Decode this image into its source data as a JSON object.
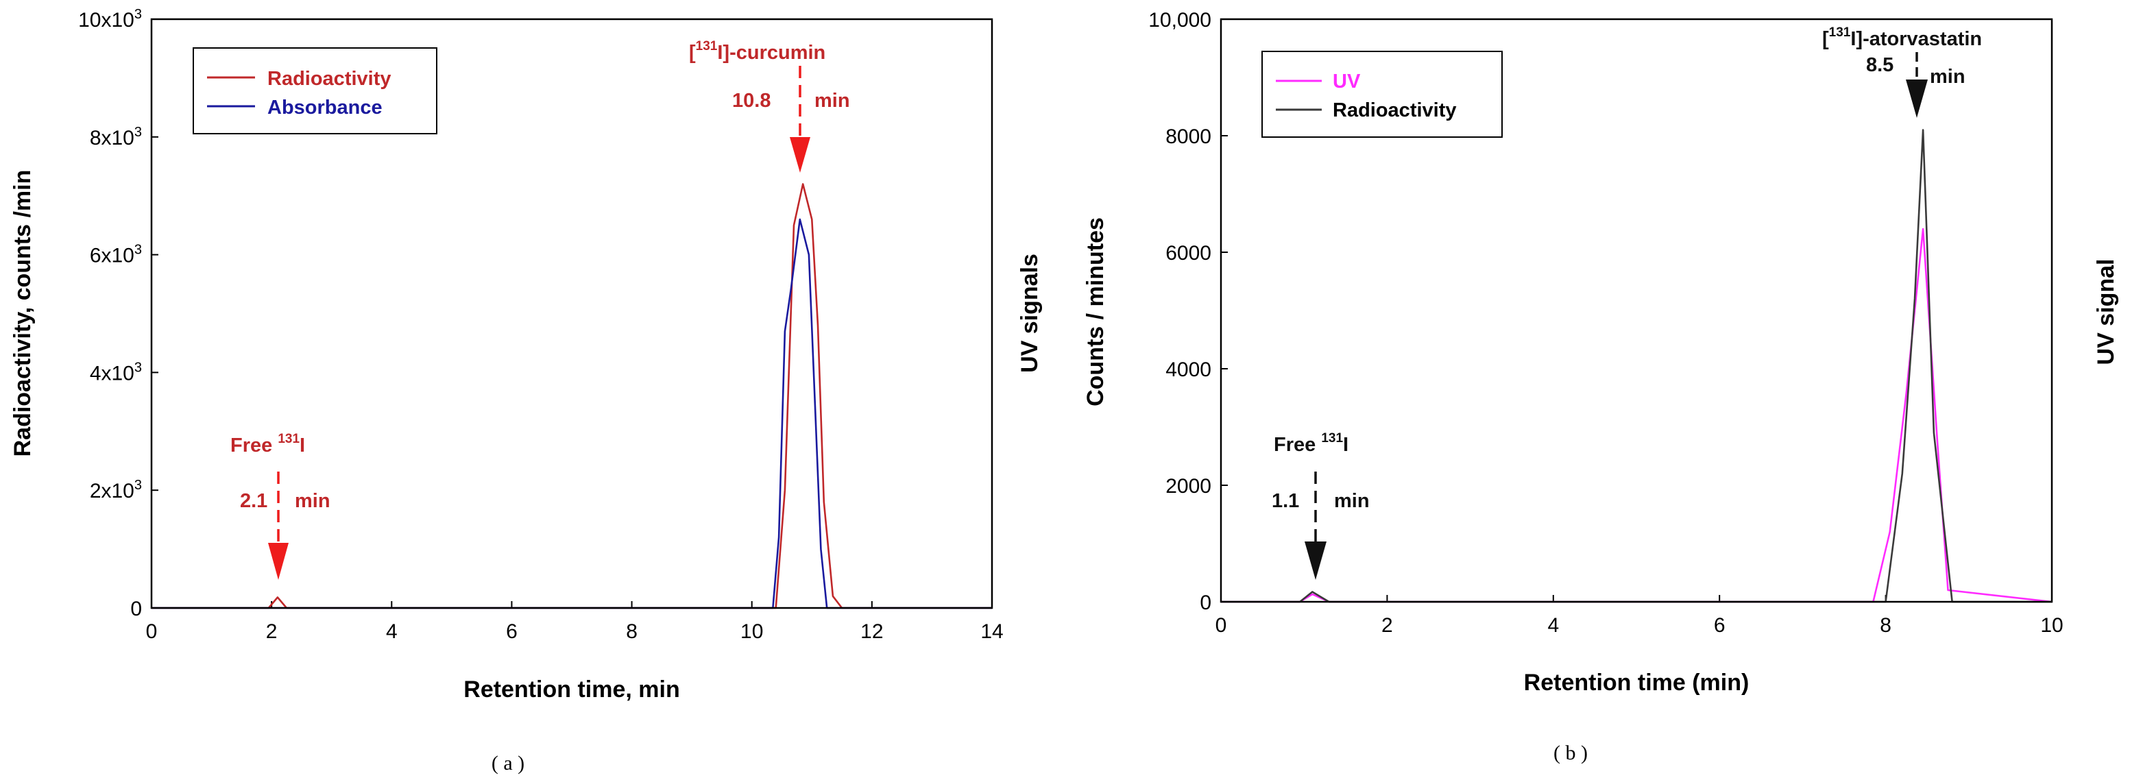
{
  "colors": {
    "a_radio": "#c0282a",
    "a_abs": "#1a1a9e",
    "a_annot": "#c0282a",
    "a_arrow": "#ee1c1c",
    "a_right_label": "#1f1f8f",
    "b_uv": "#ff2bff",
    "b_radio": "#3a3a3a",
    "b_annot": "#111111",
    "b_right_label": "#ff2bff"
  },
  "chart_data": [
    {
      "type": "line",
      "caption": "( a )",
      "xlabel": "Retention time, min",
      "ylabel": "Radioactivity, counts /min",
      "right_label": "UV signals",
      "xlim": [
        0,
        14
      ],
      "ylim": [
        0,
        10000
      ],
      "xticks": [
        0,
        2,
        4,
        6,
        8,
        10,
        12,
        14
      ],
      "xtick_labels": [
        "0",
        "2",
        "4",
        "6",
        "8",
        "10",
        "12",
        "14"
      ],
      "yticks": [
        0,
        2000,
        4000,
        6000,
        8000,
        10000
      ],
      "ytick_labels": [
        {
          "base": "0",
          "exp": ""
        },
        {
          "base": "2x10",
          "exp": "3"
        },
        {
          "base": "4x10",
          "exp": "3"
        },
        {
          "base": "6x10",
          "exp": "3"
        },
        {
          "base": "8x10",
          "exp": "3"
        },
        {
          "base": "10x10",
          "exp": "3"
        }
      ],
      "legend": [
        {
          "name": "Radioactivity",
          "color_key": "a_radio"
        },
        {
          "name": "Absorbance",
          "color_key": "a_abs"
        }
      ],
      "series": [
        {
          "name": "Radioactivity",
          "x": [
            0,
            1.95,
            2.1,
            2.25,
            10.4,
            10.55,
            10.7,
            10.85,
            11.0,
            11.1,
            11.2,
            11.35,
            11.5,
            14
          ],
          "y": [
            0,
            0,
            180,
            0,
            0,
            2000,
            6500,
            7200,
            6600,
            4800,
            1800,
            200,
            0,
            0
          ]
        },
        {
          "name": "Absorbance",
          "x": [
            0,
            10.35,
            10.45,
            10.55,
            10.65,
            10.8,
            10.95,
            11.05,
            11.15,
            11.25,
            11.4,
            14
          ],
          "y": [
            0,
            0,
            1200,
            4700,
            5400,
            6600,
            6000,
            3500,
            1000,
            0,
            0,
            0
          ]
        }
      ],
      "annotations": [
        {
          "pre": "[",
          "sup": "131",
          "post": "I]-curcumin",
          "time_value": "10.8",
          "time_unit": "min",
          "x": 10.8,
          "y": 7200
        },
        {
          "pre": "Free ",
          "sup": "131",
          "post": "I",
          "time_value": "2.1",
          "time_unit": "min",
          "x": 2.1,
          "y": 180
        }
      ]
    },
    {
      "type": "line",
      "caption": "( b )",
      "xlabel": "Retention time (min)",
      "ylabel": "Counts / minutes",
      "right_label": "UV signal",
      "xlim": [
        0,
        10
      ],
      "ylim": [
        0,
        10000
      ],
      "xticks": [
        0,
        2,
        4,
        6,
        8,
        10
      ],
      "xtick_labels": [
        "0",
        "2",
        "4",
        "6",
        "8",
        "10"
      ],
      "yticks": [
        0,
        2000,
        4000,
        6000,
        8000,
        10000
      ],
      "ytick_labels": [
        "0",
        "2000",
        "4000",
        "6000",
        "8000",
        "10,000"
      ],
      "legend": [
        {
          "name": "UV",
          "color_key": "b_uv"
        },
        {
          "name": "Radioactivity",
          "color_key": "b_radio"
        }
      ],
      "series": [
        {
          "name": "UV",
          "x": [
            0,
            0.95,
            1.1,
            1.3,
            7.85,
            8.05,
            8.25,
            8.45,
            8.62,
            8.75,
            10
          ],
          "y": [
            0,
            0,
            130,
            0,
            0,
            1200,
            3600,
            6400,
            2800,
            200,
            0
          ]
        },
        {
          "name": "Radioactivity",
          "x": [
            0,
            0.95,
            1.1,
            1.3,
            8.0,
            8.2,
            8.35,
            8.45,
            8.58,
            8.8,
            10
          ],
          "y": [
            0,
            0,
            170,
            0,
            0,
            2200,
            5200,
            8100,
            2900,
            0,
            0
          ]
        }
      ],
      "annotations": [
        {
          "pre": "[",
          "sup": "131",
          "post": "I]-atorvastatin",
          "time_value": "8.5",
          "time_unit": "min",
          "x": 8.45,
          "y": 8100
        },
        {
          "pre": "Free ",
          "sup": "131",
          "post": "I",
          "time_value": "1.1",
          "time_unit": "min",
          "x": 1.1,
          "y": 170
        }
      ]
    }
  ]
}
